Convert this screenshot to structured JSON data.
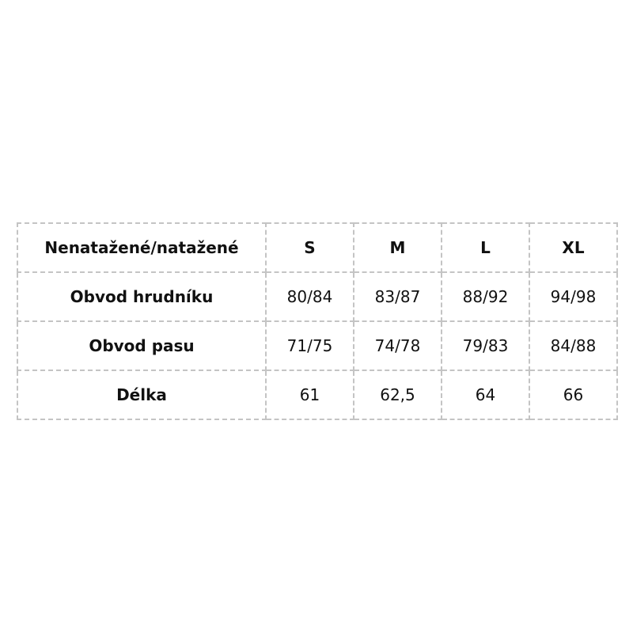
{
  "table": {
    "header": [
      "Nenatažené/natažené",
      "S",
      "M",
      "L",
      "XL"
    ],
    "rows": [
      [
        "Obvod hrudníku",
        "80/84",
        "83/87",
        "88/92",
        "94/98"
      ],
      [
        "Obvod pasu",
        "71/75",
        "74/78",
        "79/83",
        "84/88"
      ],
      [
        "Délka",
        "61",
        "62,5",
        "64",
        "66"
      ]
    ]
  }
}
